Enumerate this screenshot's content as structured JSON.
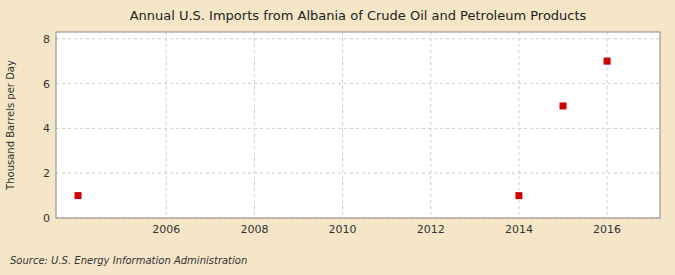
{
  "chart_data": {
    "type": "scatter",
    "title": "Annual U.S. Imports from Albania of Crude Oil and Petroleum Products",
    "ylabel": "Thousand Barrels per Day",
    "source": "Source: U.S. Energy Information Administration",
    "x": [
      2004,
      2014,
      2015,
      2016
    ],
    "values": [
      1,
      1,
      5,
      7
    ],
    "color": "#cc0000",
    "marker": "square",
    "xlim": [
      2003.5,
      2017.2
    ],
    "ylim": [
      0,
      8.3
    ],
    "xticks": [
      2006,
      2008,
      2010,
      2012,
      2014,
      2016
    ],
    "yticks": [
      0,
      2,
      4,
      6,
      8
    ],
    "grid": true
  }
}
